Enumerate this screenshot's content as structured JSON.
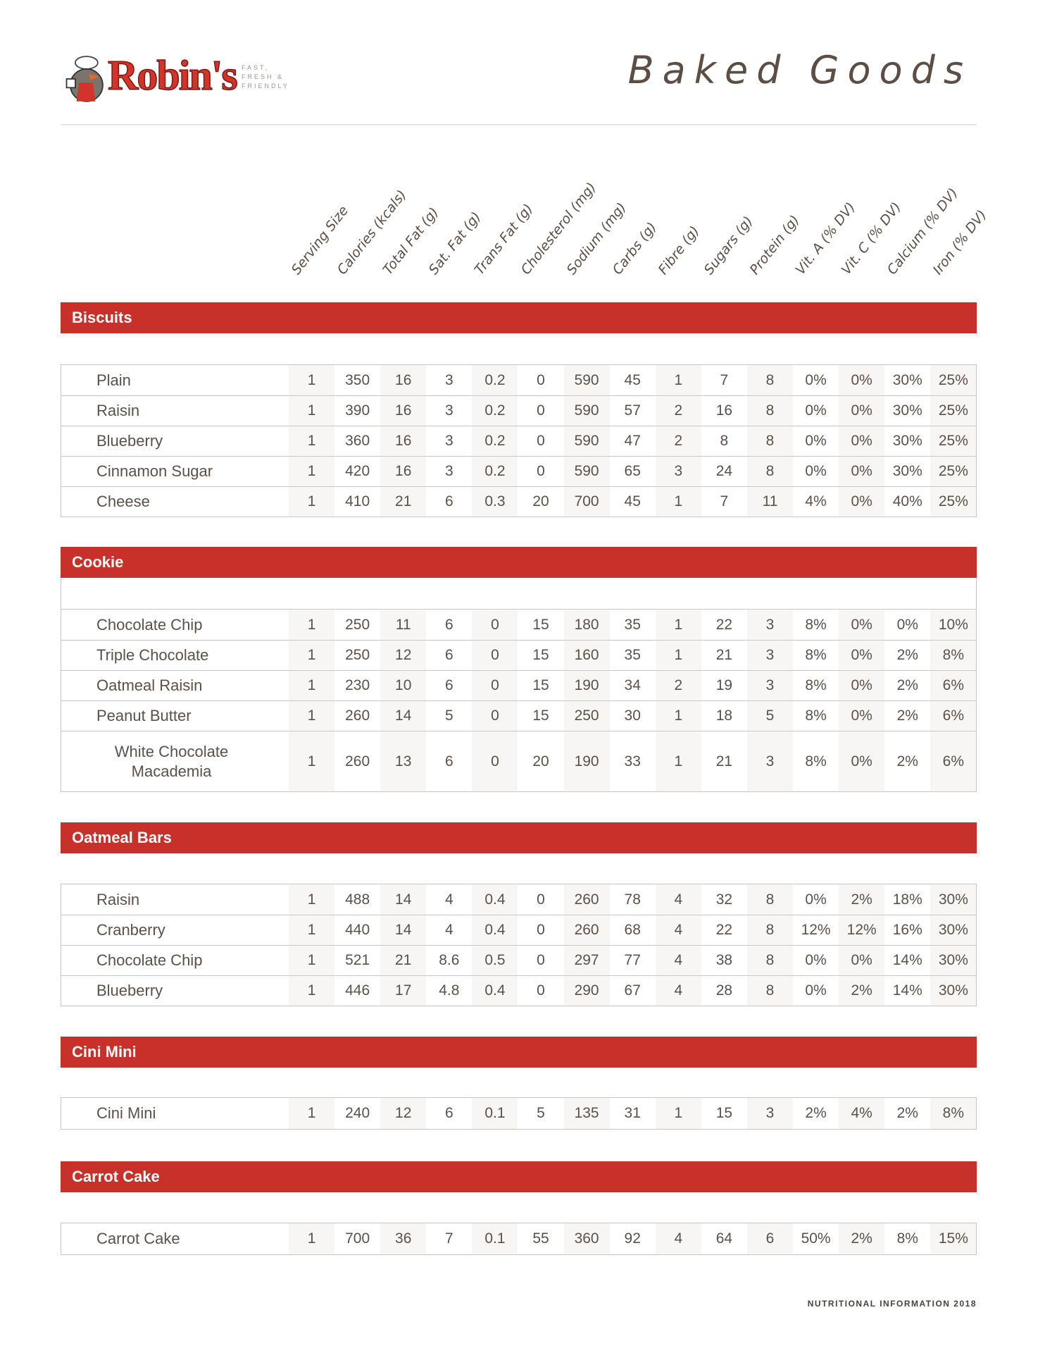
{
  "logo": {
    "brand": "Robin's",
    "tagline": "FAST, FRESH & FRIENDLY"
  },
  "title": "Baked Goods",
  "columns": [
    "Serving Size",
    "Calories (kcals)",
    "Total Fat (g)",
    "Sat. Fat (g)",
    "Trans Fat (g)",
    "Cholesterol (mg)",
    "Sodium (mg)",
    "Carbs (g)",
    "Fibre (g)",
    "Sugars (g)",
    "Protein (g)",
    "Vit. A (% DV)",
    "Vit. C (% DV)",
    "Calcium (% DV)",
    "Iron (% DV)"
  ],
  "colors": {
    "accent": "#c8302a",
    "text": "#5b514b",
    "shade": "#f7f6f4"
  },
  "sections": [
    {
      "name": "Biscuits",
      "rows": [
        {
          "item": "Plain",
          "values": [
            "1",
            "350",
            "16",
            "3",
            "0.2",
            "0",
            "590",
            "45",
            "1",
            "7",
            "8",
            "0%",
            "0%",
            "30%",
            "25%"
          ]
        },
        {
          "item": "Raisin",
          "values": [
            "1",
            "390",
            "16",
            "3",
            "0.2",
            "0",
            "590",
            "57",
            "2",
            "16",
            "8",
            "0%",
            "0%",
            "30%",
            "25%"
          ]
        },
        {
          "item": "Blueberry",
          "values": [
            "1",
            "360",
            "16",
            "3",
            "0.2",
            "0",
            "590",
            "47",
            "2",
            "8",
            "8",
            "0%",
            "0%",
            "30%",
            "25%"
          ]
        },
        {
          "item": "Cinnamon Sugar",
          "values": [
            "1",
            "420",
            "16",
            "3",
            "0.2",
            "0",
            "590",
            "65",
            "3",
            "24",
            "8",
            "0%",
            "0%",
            "30%",
            "25%"
          ]
        },
        {
          "item": "Cheese",
          "values": [
            "1",
            "410",
            "21",
            "6",
            "0.3",
            "20",
            "700",
            "45",
            "1",
            "7",
            "11",
            "4%",
            "0%",
            "40%",
            "25%"
          ]
        }
      ]
    },
    {
      "name": "Cookie",
      "rows": [
        {
          "item": "Chocolate Chip",
          "values": [
            "1",
            "250",
            "11",
            "6",
            "0",
            "15",
            "180",
            "35",
            "1",
            "22",
            "3",
            "8%",
            "0%",
            "0%",
            "10%"
          ]
        },
        {
          "item": "Triple Chocolate",
          "values": [
            "1",
            "250",
            "12",
            "6",
            "0",
            "15",
            "160",
            "35",
            "1",
            "21",
            "3",
            "8%",
            "0%",
            "2%",
            "8%"
          ]
        },
        {
          "item": "Oatmeal Raisin",
          "values": [
            "1",
            "230",
            "10",
            "6",
            "0",
            "15",
            "190",
            "34",
            "2",
            "19",
            "3",
            "8%",
            "0%",
            "2%",
            "6%"
          ]
        },
        {
          "item": "Peanut Butter",
          "values": [
            "1",
            "260",
            "14",
            "5",
            "0",
            "15",
            "250",
            "30",
            "1",
            "18",
            "5",
            "8%",
            "0%",
            "2%",
            "6%"
          ]
        },
        {
          "item": "White Chocolate Macademia",
          "values": [
            "1",
            "260",
            "13",
            "6",
            "0",
            "20",
            "190",
            "33",
            "1",
            "21",
            "3",
            "8%",
            "0%",
            "2%",
            "6%"
          ]
        }
      ]
    },
    {
      "name": "Oatmeal Bars",
      "rows": [
        {
          "item": "Raisin",
          "values": [
            "1",
            "488",
            "14",
            "4",
            "0.4",
            "0",
            "260",
            "78",
            "4",
            "32",
            "8",
            "0%",
            "2%",
            "18%",
            "30%"
          ]
        },
        {
          "item": "Cranberry",
          "values": [
            "1",
            "440",
            "14",
            "4",
            "0.4",
            "0",
            "260",
            "68",
            "4",
            "22",
            "8",
            "12%",
            "12%",
            "16%",
            "30%"
          ]
        },
        {
          "item": "Chocolate Chip",
          "values": [
            "1",
            "521",
            "21",
            "8.6",
            "0.5",
            "0",
            "297",
            "77",
            "4",
            "38",
            "8",
            "0%",
            "0%",
            "14%",
            "30%"
          ]
        },
        {
          "item": "Blueberry",
          "values": [
            "1",
            "446",
            "17",
            "4.8",
            "0.4",
            "0",
            "290",
            "67",
            "4",
            "28",
            "8",
            "0%",
            "2%",
            "14%",
            "30%"
          ]
        }
      ]
    },
    {
      "name": "Cini Mini",
      "rows": [
        {
          "item": "Cini Mini",
          "values": [
            "1",
            "240",
            "12",
            "6",
            "0.1",
            "5",
            "135",
            "31",
            "1",
            "15",
            "3",
            "2%",
            "4%",
            "2%",
            "8%"
          ]
        }
      ]
    },
    {
      "name": "Carrot Cake",
      "rows": [
        {
          "item": "Carrot Cake",
          "values": [
            "1",
            "700",
            "36",
            "7",
            "0.1",
            "55",
            "360",
            "92",
            "4",
            "64",
            "6",
            "50%",
            "2%",
            "8%",
            "15%"
          ]
        }
      ]
    }
  ],
  "footer": "NUTRITIONAL INFORMATION 2018"
}
